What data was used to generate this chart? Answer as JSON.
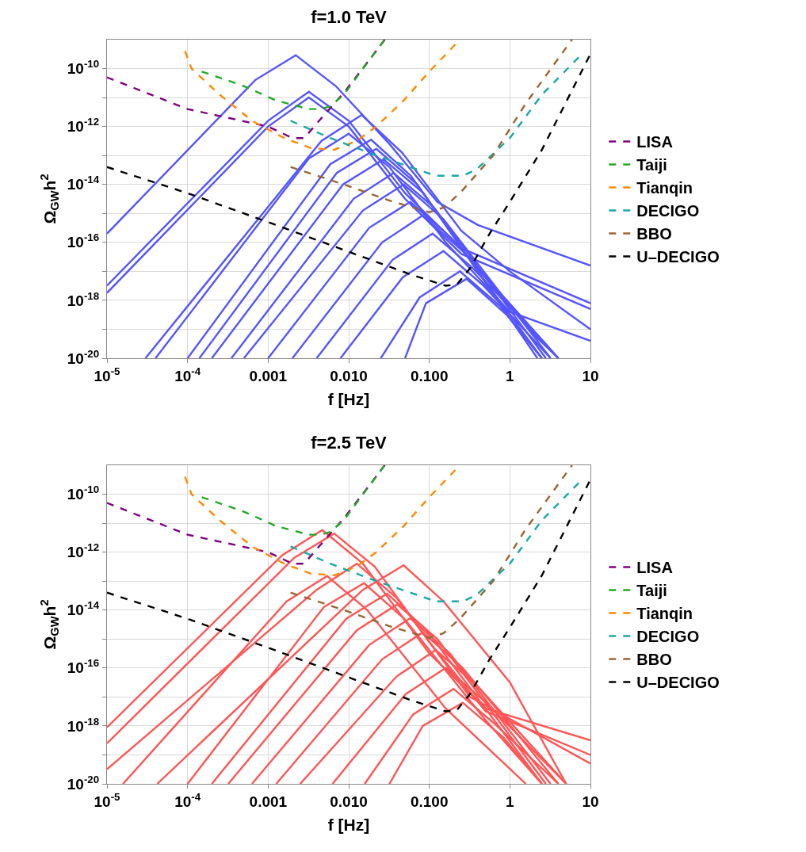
{
  "chart_data": [
    {
      "type": "line",
      "title": "f=1.0 TeV",
      "xlabel": "f [Hz]",
      "ylabel": "Ω$_{GW}$h$^{2}$",
      "log": "xy",
      "grid": true,
      "legend": "right",
      "xlim": [
        1e-05,
        10
      ],
      "ylim": [
        1e-20,
        1e-09
      ],
      "xticks": [
        {
          "value": 1e-05,
          "label": "10$^{-5}$"
        },
        {
          "value": 0.0001,
          "label": "10$^{-4}$"
        },
        {
          "value": 0.001,
          "label": "0.001"
        },
        {
          "value": 0.01,
          "label": "0.010"
        },
        {
          "value": 0.1,
          "label": "0.100"
        },
        {
          "value": 1,
          "label": "1"
        },
        {
          "value": 10,
          "label": "10"
        }
      ],
      "yticks": [
        {
          "value": 1e-20,
          "label": "10$^{-20}$"
        },
        {
          "value": 1e-19,
          "label": null
        },
        {
          "value": 1e-18,
          "label": "10$^{-18}$"
        },
        {
          "value": 1e-17,
          "label": null
        },
        {
          "value": 1e-16,
          "label": "10$^{-16}$"
        },
        {
          "value": 1e-15,
          "label": null
        },
        {
          "value": 1e-14,
          "label": "10$^{-14}$"
        },
        {
          "value": 1e-13,
          "label": null
        },
        {
          "value": 1e-12,
          "label": "10$^{-12}$"
        },
        {
          "value": 1e-11,
          "label": null
        },
        {
          "value": 1e-10,
          "label": "10$^{-10}$"
        }
      ],
      "series": [
        {
          "color": "#5555ff",
          "line_style": "solid",
          "x": [
            1e-05,
            0.00069,
            0.0022,
            0.0069,
            0.032,
            0.126,
            0.4,
            10
          ],
          "values": [
            2e-16,
            4e-11,
            2.9e-10,
            2.5e-11,
            2.5e-13,
            2.5e-15,
            4e-16,
            1.58e-17
          ]
        },
        {
          "color": "#5555ff",
          "line_style": "solid",
          "x": [
            1e-05,
            0.001,
            0.0032,
            0.01,
            0.05,
            0.25,
            10
          ],
          "values": [
            3.2e-18,
            1.58e-12,
            1.58e-11,
            1.58e-12,
            5e-15,
            6.3e-17,
            7.9e-19
          ]
        },
        {
          "color": "#5555ff",
          "line_style": "solid",
          "x": [
            1e-05,
            0.001,
            0.0032,
            0.01,
            0.05,
            0.25,
            10
          ],
          "values": [
            1.8e-18,
            1e-12,
            1e-11,
            1e-12,
            3.2e-15,
            4e-17,
            5e-19
          ]
        },
        {
          "color": "#5555ff",
          "line_style": "solid",
          "x": [
            3e-05,
            0.0046,
            0.0145,
            0.046,
            0.25,
            1,
            10
          ],
          "values": [
            1e-20,
            3.2e-13,
            2.5e-12,
            1.26e-13,
            2.5e-16,
            1e-17,
            1e-19
          ]
        },
        {
          "color": "#5555ff",
          "line_style": "solid",
          "x": [
            4e-05,
            0.0032,
            0.01,
            0.032,
            0.16,
            1,
            10
          ],
          "values": [
            1e-20,
            7.9e-14,
            5.6e-13,
            4e-14,
            1e-16,
            4e-19,
            4e-20
          ]
        },
        {
          "color": "#5555ff",
          "line_style": "solid",
          "x": [
            0.0001,
            0.0059,
            0.019,
            0.059,
            0.32,
            2,
            4
          ],
          "values": [
            1e-20,
            5e-14,
            3.5e-13,
            2e-14,
            2.5e-17,
            6.3e-20,
            1e-20
          ]
        },
        {
          "color": "#5555ff",
          "line_style": "solid",
          "x": [
            0.00014,
            0.0071,
            0.022,
            0.071,
            0.4,
            2.5
          ],
          "values": [
            1e-20,
            2.5e-14,
            1.7e-13,
            1e-14,
            1e-17,
            1e-20
          ]
        },
        {
          "color": "#5555ff",
          "line_style": "solid",
          "x": [
            0.0002,
            0.0085,
            0.027,
            0.085,
            0.5,
            2.2
          ],
          "values": [
            1e-20,
            1e-14,
            7.4e-14,
            5e-15,
            4e-18,
            1e-20
          ]
        },
        {
          "color": "#5555ff",
          "line_style": "solid",
          "x": [
            0.00035,
            0.0115,
            0.036,
            0.115,
            2.8
          ],
          "values": [
            1e-20,
            3.2e-15,
            2.5e-14,
            1.58e-15,
            1e-20
          ]
        },
        {
          "color": "#5555ff",
          "line_style": "solid",
          "x": [
            0.0005,
            0.015,
            0.048,
            0.15,
            3.2
          ],
          "values": [
            1e-20,
            1.26e-15,
            1e-14,
            6.3e-16,
            1e-20
          ]
        },
        {
          "color": "#5555ff",
          "line_style": "solid",
          "x": [
            0.001,
            0.018,
            0.058,
            0.18,
            4
          ],
          "values": [
            1e-20,
            3.2e-16,
            2.5e-15,
            1.58e-16,
            1e-20
          ]
        },
        {
          "color": "#5555ff",
          "line_style": "solid",
          "x": [
            0.002,
            0.026,
            0.083,
            0.26,
            4
          ],
          "values": [
            1e-20,
            1e-16,
            8.5e-16,
            5e-17,
            1e-20
          ]
        },
        {
          "color": "#5555ff",
          "line_style": "solid",
          "x": [
            0.004,
            0.035,
            0.11,
            0.35,
            4
          ],
          "values": [
            1e-20,
            2.5e-17,
            2e-16,
            1.26e-17,
            1e-20
          ]
        },
        {
          "color": "#5555ff",
          "line_style": "solid",
          "x": [
            0.0079,
            0.047,
            0.15,
            0.47,
            3.2
          ],
          "values": [
            1e-20,
            6.3e-18,
            5e-17,
            3.2e-18,
            1e-20
          ]
        },
        {
          "color": "#5555ff",
          "line_style": "solid",
          "x": [
            0.025,
            0.076,
            0.24,
            0.76,
            2.5
          ],
          "values": [
            1e-20,
            1.26e-18,
            1e-17,
            6.3e-19,
            1e-20
          ]
        },
        {
          "color": "#5555ff",
          "line_style": "solid",
          "x": [
            0.05,
            0.091,
            0.29,
            0.91,
            2.5
          ],
          "values": [
            1e-20,
            7.9e-19,
            5.5e-18,
            3.2e-19,
            1e-20
          ]
        },
        {
          "name": "LISA",
          "color": "#800080",
          "line_style": "dashed",
          "x": [
            1e-05,
            0.0001,
            0.001,
            0.002,
            0.0028,
            0.004,
            0.0089,
            0.018,
            0.028
          ],
          "values": [
            5e-11,
            4e-12,
            1e-12,
            4e-13,
            4e-13,
            1.26e-12,
            1.58e-11,
            2e-10,
            1e-09
          ]
        },
        {
          "name": "Taiji",
          "color": "#22aa22",
          "line_style": "dashed",
          "x": [
            0.00015,
            0.0005,
            0.00126,
            0.0032,
            0.0045,
            0.0059,
            0.0087,
            0.017,
            0.028
          ],
          "values": [
            7.9e-11,
            2.5e-11,
            7.9e-12,
            4e-12,
            4e-12,
            5e-12,
            1.26e-11,
            1.58e-10,
            1e-09
          ]
        },
        {
          "name": "Tianqin",
          "color": "#ff8800",
          "line_style": "dashed",
          "x": [
            9.3e-05,
            0.000112,
            0.00025,
            0.00063,
            0.00158,
            0.0034,
            0.0066,
            0.0126,
            0.022,
            0.048,
            0.1,
            0.24
          ],
          "values": [
            4e-10,
            1e-10,
            1.26e-11,
            1.58e-12,
            4e-13,
            1.8e-13,
            1.58e-13,
            3.2e-13,
            1e-12,
            7.9e-12,
            7.9e-11,
            1e-09
          ]
        },
        {
          "name": "DECIGO",
          "color": "#1aa8a8",
          "line_style": "dashed",
          "x": [
            0.0019,
            0.0059,
            0.022,
            0.058,
            0.12,
            0.26,
            0.38,
            1,
            2.5,
            7.2
          ],
          "values": [
            1.58e-12,
            4e-13,
            1e-13,
            4e-14,
            2e-14,
            2e-14,
            3.2e-14,
            4e-13,
            1.26e-11,
            2.5e-10
          ]
        },
        {
          "name": "BBO",
          "color": "#996633",
          "line_style": "dashed",
          "x": [
            0.0019,
            0.0087,
            0.036,
            0.1,
            0.15,
            0.24,
            0.62,
            1.58,
            5.9
          ],
          "values": [
            4e-14,
            1e-14,
            2.5e-15,
            1.1e-15,
            1.58e-15,
            5e-15,
            1e-13,
            6.3e-12,
            1e-09
          ]
        },
        {
          "name": "U–DECIGO",
          "color": "#000000",
          "line_style": "dashed",
          "x": [
            1e-05,
            0.0001,
            0.001,
            0.0095,
            0.058,
            0.16,
            0.22,
            0.32,
            0.56,
            1,
            2.5,
            10
          ],
          "values": [
            4e-14,
            5e-15,
            5e-16,
            5e-17,
            7.9e-18,
            3.2e-18,
            3.5e-18,
            1.26e-17,
            2e-16,
            2.5e-15,
            1.58e-13,
            3.2e-10
          ]
        }
      ]
    },
    {
      "type": "line",
      "title": "f=2.5 TeV",
      "xlabel": "f [Hz]",
      "ylabel": "Ω$_{GW}$h$^{2}$",
      "log": "xy",
      "grid": true,
      "legend": "right",
      "xlim": [
        1e-05,
        10
      ],
      "ylim": [
        1e-20,
        1e-09
      ],
      "xticks": [
        {
          "value": 1e-05,
          "label": "10$^{-5}$"
        },
        {
          "value": 0.0001,
          "label": "10$^{-4}$"
        },
        {
          "value": 0.001,
          "label": "0.001"
        },
        {
          "value": 0.01,
          "label": "0.010"
        },
        {
          "value": 0.1,
          "label": "0.100"
        },
        {
          "value": 1,
          "label": "1"
        },
        {
          "value": 10,
          "label": "10"
        }
      ],
      "yticks": [
        {
          "value": 1e-20,
          "label": "10$^{-20}$"
        },
        {
          "value": 1e-19,
          "label": null
        },
        {
          "value": 1e-18,
          "label": "10$^{-18}$"
        },
        {
          "value": 1e-17,
          "label": null
        },
        {
          "value": 1e-16,
          "label": "10$^{-16}$"
        },
        {
          "value": 1e-15,
          "label": null
        },
        {
          "value": 1e-14,
          "label": "10$^{-14}$"
        },
        {
          "value": 1e-13,
          "label": null
        },
        {
          "value": 1e-12,
          "label": "10$^{-12}$"
        },
        {
          "value": 1e-11,
          "label": null
        },
        {
          "value": 1e-10,
          "label": "10$^{-10}$"
        }
      ],
      "series": [
        {
          "color": "#ff5555",
          "line_style": "solid",
          "x": [
            1e-05,
            0.0015,
            0.0047,
            0.015,
            0.1,
            0.5,
            10
          ],
          "values": [
            8.9e-19,
            7.9e-13,
            5.8e-12,
            4e-13,
            3.2e-16,
            4e-18,
            3.2e-19
          ]
        },
        {
          "color": "#ff5555",
          "line_style": "solid",
          "x": [
            1e-05,
            0.0021,
            0.0066,
            0.021,
            0.1,
            0.5,
            10
          ],
          "values": [
            2.5e-19,
            6.3e-13,
            4.4e-12,
            3.2e-13,
            7.9e-16,
            3.2e-18,
            1e-19
          ]
        },
        {
          "color": "#ff5555",
          "line_style": "solid",
          "x": [
            1e-05,
            0.004,
            0.0126,
            0.04,
            0.32,
            10
          ],
          "values": [
            3.2e-20,
            5e-14,
            4e-13,
            2.5e-14,
            1e-17,
            5e-20
          ]
        },
        {
          "color": "#ff5555",
          "line_style": "solid",
          "x": [
            4.2e-05,
            0.015,
            0.048,
            0.15,
            1,
            5
          ],
          "values": [
            1e-20,
            5e-14,
            3.5e-13,
            2e-14,
            3.2e-17,
            1e-20
          ]
        },
        {
          "color": "#ff5555",
          "line_style": "solid",
          "x": [
            1.58e-05,
            0.0017,
            0.0054,
            0.017,
            0.16,
            1.58
          ],
          "values": [
            1e-20,
            2e-14,
            1.5e-13,
            1e-14,
            4e-18,
            1e-20
          ]
        },
        {
          "color": "#ff5555",
          "line_style": "solid",
          "x": [
            0.0001,
            0.0049,
            0.0155,
            0.049,
            0.5,
            2.5
          ],
          "values": [
            1e-20,
            1.26e-14,
            8.5e-14,
            5e-15,
            1.58e-18,
            1e-20
          ]
        },
        {
          "color": "#ff5555",
          "line_style": "solid",
          "x": [
            0.0002,
            0.0093,
            0.03,
            0.093,
            2.5
          ],
          "values": [
            1e-20,
            5e-15,
            3.7e-14,
            2e-15,
            1e-20
          ]
        },
        {
          "color": "#ff5555",
          "line_style": "solid",
          "x": [
            0.00032,
            0.0126,
            0.04,
            0.126,
            2.8
          ],
          "values": [
            1e-20,
            2e-15,
            1.58e-14,
            1e-15,
            1e-20
          ]
        },
        {
          "color": "#ff5555",
          "line_style": "solid",
          "x": [
            0.00063,
            0.018,
            0.058,
            0.18,
            3.2
          ],
          "values": [
            1e-20,
            6.3e-16,
            5.2e-15,
            3.2e-16,
            1e-20
          ]
        },
        {
          "color": "#ff5555",
          "line_style": "solid",
          "x": [
            0.00126,
            0.026,
            0.083,
            0.26,
            4
          ],
          "values": [
            1e-20,
            2e-16,
            1.7e-15,
            1e-16,
            1e-20
          ]
        },
        {
          "color": "#ff5555",
          "line_style": "solid",
          "x": [
            0.0025,
            0.039,
            0.12,
            0.39,
            5
          ],
          "values": [
            1e-20,
            5e-17,
            4.2e-16,
            2.5e-17,
            1e-20
          ]
        },
        {
          "color": "#ff5555",
          "line_style": "solid",
          "x": [
            0.0063,
            0.051,
            0.16,
            0.51,
            5
          ],
          "values": [
            1e-20,
            1.26e-17,
            1e-16,
            6.3e-18,
            1e-20
          ]
        },
        {
          "color": "#ff5555",
          "line_style": "solid",
          "x": [
            0.0158,
            0.063,
            0.2,
            0.63,
            4
          ],
          "values": [
            1e-20,
            2.5e-18,
            1.9e-17,
            1.26e-18,
            1e-20
          ]
        },
        {
          "color": "#ff5555",
          "line_style": "solid",
          "x": [
            0.032,
            0.083,
            0.26,
            0.83,
            2.5
          ],
          "values": [
            1e-20,
            1e-18,
            6.3e-18,
            4e-19,
            1e-20
          ]
        },
        {
          "name": "LISA",
          "color": "#800080",
          "line_style": "dashed",
          "x": [
            1e-05,
            0.0001,
            0.001,
            0.002,
            0.0028,
            0.004,
            0.0089,
            0.018,
            0.028
          ],
          "values": [
            5e-11,
            4e-12,
            1e-12,
            4e-13,
            4e-13,
            1.26e-12,
            1.58e-11,
            2e-10,
            1e-09
          ]
        },
        {
          "name": "Taiji",
          "color": "#22aa22",
          "line_style": "dashed",
          "x": [
            0.00015,
            0.0005,
            0.00126,
            0.0032,
            0.0045,
            0.0059,
            0.0087,
            0.017,
            0.028
          ],
          "values": [
            7.9e-11,
            2.5e-11,
            7.9e-12,
            4e-12,
            4e-12,
            5e-12,
            1.26e-11,
            1.58e-10,
            1e-09
          ]
        },
        {
          "name": "Tianqin",
          "color": "#ff8800",
          "line_style": "dashed",
          "x": [
            9.3e-05,
            0.000112,
            0.00025,
            0.00063,
            0.00158,
            0.0034,
            0.0066,
            0.0126,
            0.022,
            0.048,
            0.1,
            0.24
          ],
          "values": [
            4e-10,
            1e-10,
            1.26e-11,
            1.58e-12,
            4e-13,
            1.8e-13,
            1.58e-13,
            3.2e-13,
            1e-12,
            7.9e-12,
            7.9e-11,
            1e-09
          ]
        },
        {
          "name": "DECIGO",
          "color": "#1aa8a8",
          "line_style": "dashed",
          "x": [
            0.0019,
            0.0059,
            0.022,
            0.058,
            0.12,
            0.26,
            0.38,
            1,
            2.5,
            7.2
          ],
          "values": [
            1.58e-12,
            4e-13,
            1e-13,
            4e-14,
            2e-14,
            2e-14,
            3.2e-14,
            4e-13,
            1.26e-11,
            2.5e-10
          ]
        },
        {
          "name": "BBO",
          "color": "#996633",
          "line_style": "dashed",
          "x": [
            0.0019,
            0.0087,
            0.036,
            0.1,
            0.15,
            0.24,
            0.62,
            1.58,
            5.9
          ],
          "values": [
            4e-14,
            1e-14,
            2.5e-15,
            1.1e-15,
            1.58e-15,
            5e-15,
            1e-13,
            6.3e-12,
            1e-09
          ]
        },
        {
          "name": "U–DECIGO",
          "color": "#000000",
          "line_style": "dashed",
          "x": [
            1e-05,
            0.0001,
            0.001,
            0.0095,
            0.058,
            0.16,
            0.22,
            0.32,
            0.56,
            1,
            2.5,
            10
          ],
          "values": [
            4e-14,
            5e-15,
            5e-16,
            5e-17,
            7.9e-18,
            3.2e-18,
            3.5e-18,
            1.26e-17,
            2e-16,
            2.5e-15,
            1.58e-13,
            3.2e-10
          ]
        }
      ]
    }
  ]
}
